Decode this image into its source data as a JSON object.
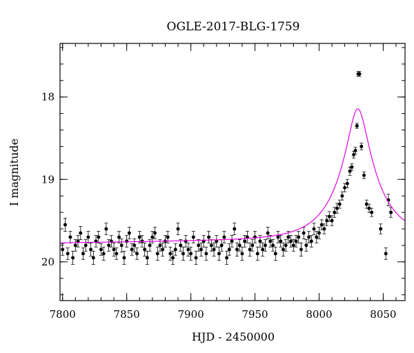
{
  "chart_data": {
    "type": "scatter",
    "title": "OGLE-2017-BLG-1759",
    "xlabel": "HJD - 2450000",
    "ylabel": "I magnitude",
    "xlim": [
      7798,
      8067
    ],
    "ylim": [
      20.47,
      17.35
    ],
    "y_inverted": true,
    "x_major_ticks": [
      7800,
      7850,
      7900,
      7950,
      8000,
      8050
    ],
    "x_minor_step": 10,
    "y_major_ticks": [
      18,
      19,
      20
    ],
    "y_minor_step": 0.2,
    "grid": false,
    "legend": "none",
    "colors": {
      "points": "#000000",
      "model": "#e000e0"
    },
    "model": {
      "name": "",
      "t0": 8030.2,
      "base_mag": 19.77,
      "base_slope_per_day": 0.00023,
      "u0": 0.24,
      "tE": 30
    },
    "series": [
      {
        "name": "",
        "x": [
          7800,
          7802,
          7804,
          7806,
          7808,
          7810,
          7812,
          7814,
          7816,
          7818,
          7820,
          7822,
          7824,
          7826,
          7828,
          7830,
          7832,
          7834,
          7836,
          7838,
          7840,
          7842,
          7844,
          7846,
          7848,
          7850,
          7852,
          7854,
          7856,
          7858,
          7860,
          7862,
          7864,
          7866,
          7868,
          7870,
          7872,
          7874,
          7876,
          7878,
          7880,
          7882,
          7884,
          7886,
          7888,
          7890,
          7892,
          7894,
          7896,
          7898,
          7900,
          7902,
          7904,
          7906,
          7908,
          7910,
          7912,
          7914,
          7916,
          7918,
          7920,
          7922,
          7924,
          7926,
          7928,
          7930,
          7932,
          7934,
          7936,
          7938,
          7940,
          7942,
          7944,
          7946,
          7948,
          7950,
          7952,
          7954,
          7956,
          7958,
          7960,
          7962,
          7964,
          7966,
          7968,
          7970,
          7972,
          7974,
          7976,
          7978,
          7980,
          7982,
          7984,
          7986,
          7988,
          7990,
          7992,
          7994,
          7996,
          7998,
          8000,
          8002,
          8004,
          8006,
          8008,
          8010,
          8012,
          8014,
          8016,
          8018,
          8020,
          8022,
          8024,
          8025.5,
          8027,
          8028.3,
          8029.5,
          8030.5,
          8031.5,
          8033,
          8035,
          8037,
          8039,
          8041,
          8048,
          8052,
          8054,
          8056
        ],
        "y": [
          19.85,
          19.55,
          19.9,
          19.7,
          19.95,
          19.8,
          19.75,
          19.65,
          19.9,
          19.8,
          19.7,
          19.85,
          19.95,
          19.75,
          19.7,
          19.85,
          19.9,
          19.6,
          19.8,
          19.75,
          19.85,
          19.9,
          19.7,
          19.8,
          19.95,
          19.75,
          19.65,
          19.85,
          19.8,
          19.9,
          19.7,
          19.75,
          19.85,
          19.95,
          19.8,
          19.7,
          19.65,
          19.9,
          19.8,
          19.85,
          19.75,
          19.7,
          19.9,
          19.95,
          19.85,
          19.6,
          19.8,
          19.9,
          19.75,
          19.85,
          19.9,
          19.7,
          19.95,
          19.8,
          19.85,
          19.75,
          19.9,
          19.7,
          19.8,
          19.85,
          19.75,
          19.9,
          19.8,
          19.7,
          19.95,
          19.85,
          19.75,
          19.6,
          19.85,
          19.8,
          19.9,
          19.75,
          19.7,
          19.85,
          19.8,
          19.7,
          19.9,
          19.75,
          19.85,
          19.8,
          19.65,
          19.75,
          19.8,
          19.9,
          19.7,
          19.75,
          19.85,
          19.8,
          19.7,
          19.75,
          19.8,
          19.75,
          19.7,
          19.85,
          19.65,
          19.8,
          19.7,
          19.75,
          19.6,
          19.7,
          19.65,
          19.55,
          19.6,
          19.5,
          19.45,
          19.5,
          19.4,
          19.35,
          19.3,
          19.2,
          19.1,
          19.05,
          18.9,
          18.85,
          18.7,
          18.65,
          18.35,
          17.72,
          17.72,
          18.6,
          18.95,
          19.3,
          19.35,
          19.4,
          19.6,
          19.9,
          19.25,
          19.4
        ],
        "err": [
          0.07,
          0.08,
          0.07,
          0.07,
          0.08,
          0.07,
          0.07,
          0.08,
          0.07,
          0.07,
          0.07,
          0.08,
          0.08,
          0.07,
          0.07,
          0.07,
          0.08,
          0.07,
          0.07,
          0.07,
          0.08,
          0.07,
          0.07,
          0.08,
          0.08,
          0.07,
          0.07,
          0.07,
          0.08,
          0.07,
          0.07,
          0.07,
          0.08,
          0.08,
          0.07,
          0.07,
          0.07,
          0.08,
          0.07,
          0.08,
          0.07,
          0.07,
          0.08,
          0.08,
          0.07,
          0.07,
          0.07,
          0.08,
          0.07,
          0.08,
          0.08,
          0.07,
          0.08,
          0.07,
          0.08,
          0.07,
          0.08,
          0.07,
          0.07,
          0.08,
          0.07,
          0.08,
          0.07,
          0.07,
          0.08,
          0.07,
          0.07,
          0.07,
          0.08,
          0.07,
          0.08,
          0.07,
          0.07,
          0.08,
          0.07,
          0.07,
          0.08,
          0.07,
          0.08,
          0.07,
          0.07,
          0.07,
          0.07,
          0.08,
          0.07,
          0.07,
          0.08,
          0.07,
          0.07,
          0.07,
          0.07,
          0.07,
          0.07,
          0.08,
          0.07,
          0.07,
          0.07,
          0.07,
          0.07,
          0.07,
          0.07,
          0.06,
          0.06,
          0.06,
          0.06,
          0.06,
          0.06,
          0.06,
          0.05,
          0.05,
          0.05,
          0.05,
          0.05,
          0.04,
          0.04,
          0.04,
          0.03,
          0.03,
          0.03,
          0.04,
          0.04,
          0.05,
          0.05,
          0.05,
          0.06,
          0.07,
          0.07,
          0.06
        ]
      }
    ]
  }
}
